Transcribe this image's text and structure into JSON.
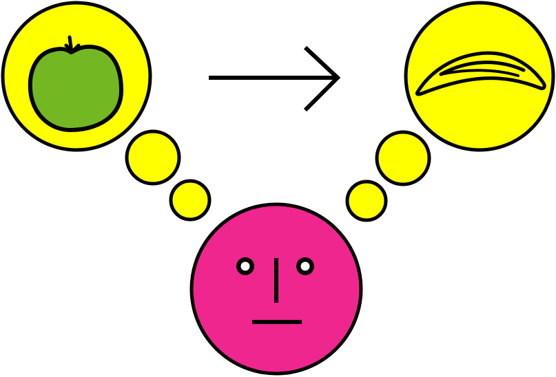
{
  "colors": {
    "background": "#ffffff",
    "bubble": "#ffff00",
    "face": "#f0268f",
    "apple": "#73b823",
    "banana": "#ffff00",
    "outline": "#000000",
    "eye_white": "#ffffff"
  },
  "icons": {
    "left_thought": "apple-icon",
    "right_thought": "banana-icon",
    "transition": "arrow-right-icon",
    "person": "face-icon"
  }
}
